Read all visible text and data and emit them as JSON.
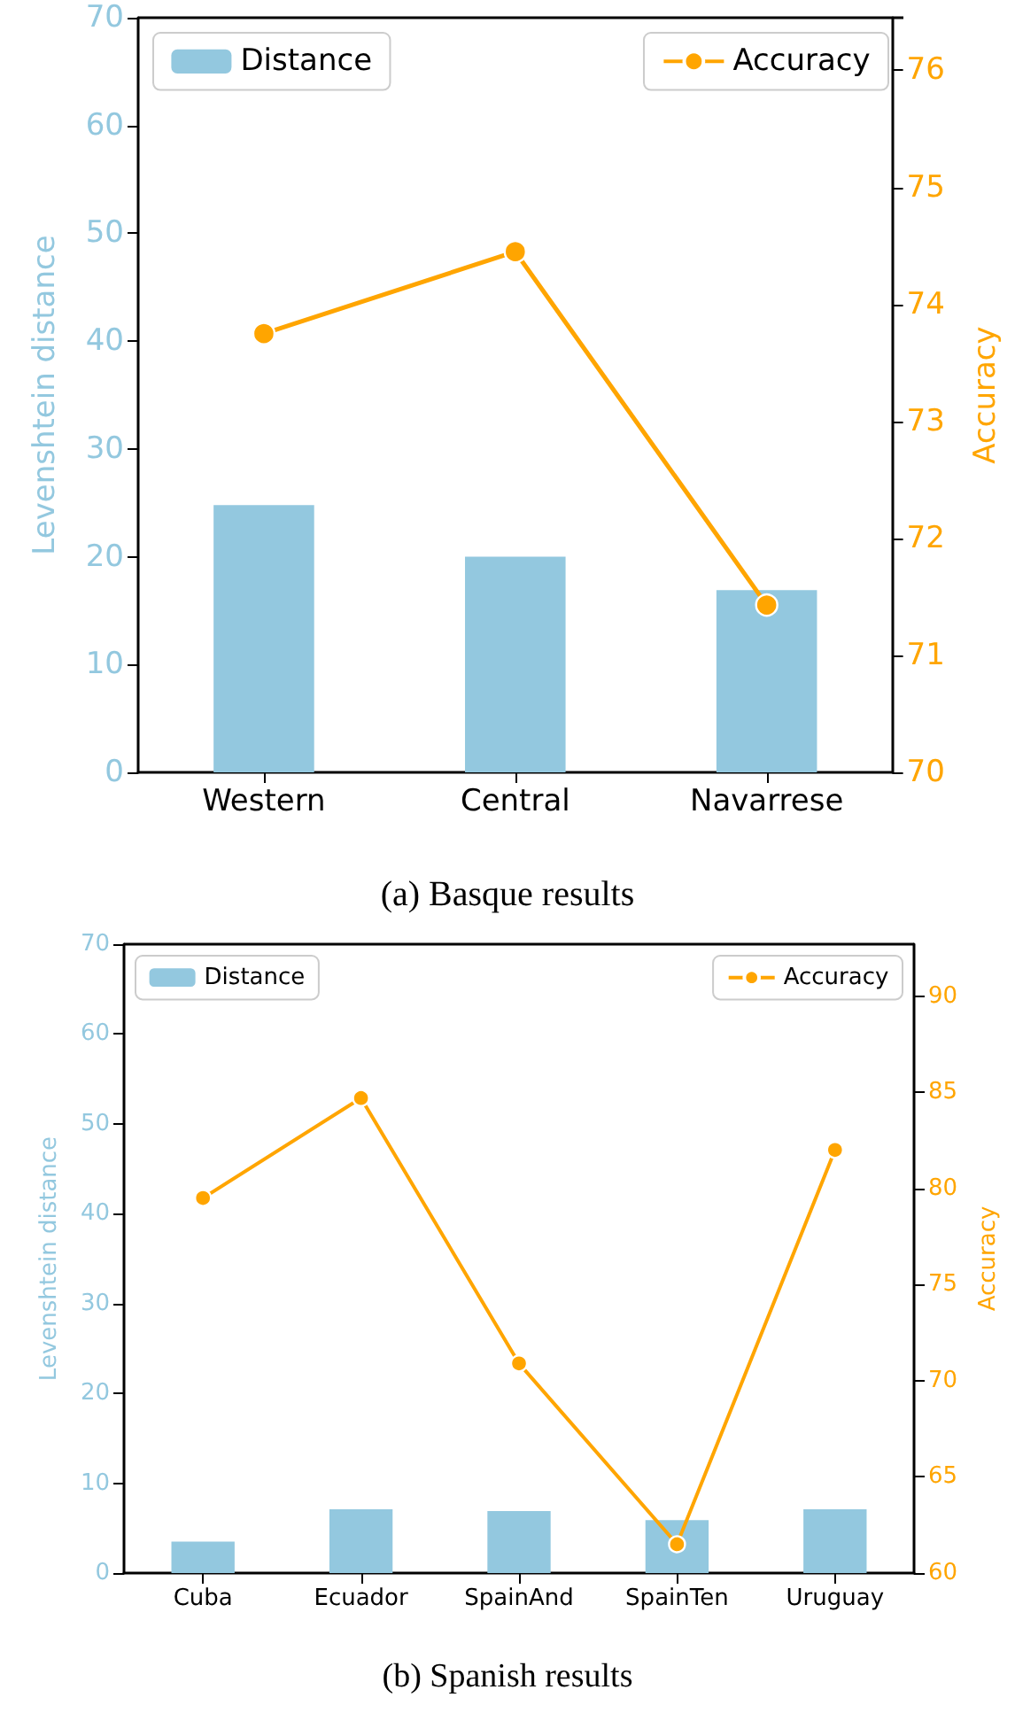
{
  "chart_data": [
    {
      "type": "bar",
      "title": "(a) Basque results",
      "categories": [
        "Western",
        "Central",
        "Navarrese"
      ],
      "ylabel": "Levenshtein distance",
      "y2label": "Accuracy",
      "ylim": [
        0,
        70
      ],
      "yticks": [
        0,
        10,
        20,
        30,
        40,
        50,
        60,
        70
      ],
      "y2lim": [
        70,
        76.45
      ],
      "y2ticks": [
        70,
        71,
        72,
        73,
        74,
        75,
        76
      ],
      "legend": "top",
      "grid": false,
      "marker": "circle",
      "series": [
        {
          "name": "Distance",
          "color": "#93c8df",
          "values": [
            24.8,
            20,
            16.9
          ]
        },
        {
          "name": "Accuracy",
          "type": "line",
          "axis": "y2",
          "color": "#ffa500",
          "values": [
            73.75,
            74.45,
            71.43
          ]
        }
      ]
    },
    {
      "type": "bar",
      "title": "(b) Spanish results",
      "categories": [
        "Cuba",
        "Ecuador",
        "SpainAnd",
        "SpainTen",
        "Uruguay"
      ],
      "ylabel": "Levenshtein distance",
      "y2label": "Accuracy",
      "ylim": [
        0,
        70
      ],
      "yticks": [
        0,
        10,
        20,
        30,
        40,
        50,
        60,
        70
      ],
      "y2lim": [
        60,
        92.7
      ],
      "y2ticks": [
        60,
        65,
        70,
        75,
        80,
        85,
        90
      ],
      "legend": "top",
      "grid": false,
      "marker": "circle",
      "series": [
        {
          "name": "Distance",
          "color": "#93c8df",
          "values": [
            3.5,
            7.1,
            6.9,
            5.9,
            7.1
          ]
        },
        {
          "name": "Accuracy",
          "type": "line",
          "axis": "y2",
          "color": "#ffa500",
          "values": [
            79.5,
            84.7,
            70.9,
            61.5,
            82.0
          ]
        }
      ]
    }
  ]
}
